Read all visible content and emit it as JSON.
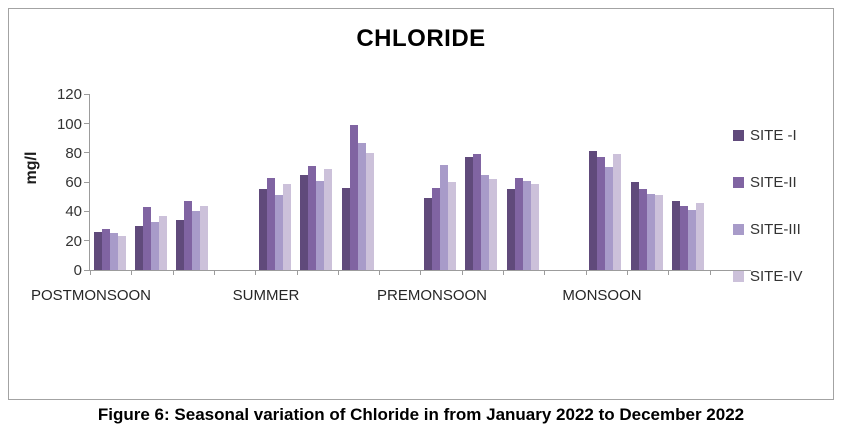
{
  "caption": "Figure 6: Seasonal variation of Chloride in from January 2022 to December 2022",
  "chart_data": {
    "type": "bar",
    "title": "CHLORIDE",
    "xlabel": "",
    "ylabel": "mg/l",
    "ylim": [
      0,
      120
    ],
    "yticks": [
      0,
      20,
      40,
      60,
      80,
      100,
      120
    ],
    "grid": false,
    "legend_position": "right",
    "categories": [
      "POSTMONSOON",
      "SUMMER",
      "PREMONSOON",
      "MONSOON"
    ],
    "clusters_per_category": 3,
    "series": [
      {
        "name": "SITE -I",
        "color": "#604a7b",
        "values": [
          [
            26,
            30,
            34
          ],
          [
            55,
            65,
            56
          ],
          [
            49,
            77,
            55
          ],
          [
            81,
            60,
            47
          ]
        ]
      },
      {
        "name": "SITE-II",
        "color": "#8064a2",
        "values": [
          [
            28,
            43,
            47
          ],
          [
            63,
            71,
            99
          ],
          [
            56,
            79,
            63
          ],
          [
            77,
            55,
            44
          ]
        ]
      },
      {
        "name": "SITE-III",
        "color": "#a89bc9",
        "values": [
          [
            25,
            33,
            40
          ],
          [
            51,
            61,
            87
          ],
          [
            72,
            65,
            61
          ],
          [
            70,
            52,
            41
          ]
        ]
      },
      {
        "name": "SITE-IV",
        "color": "#ccc1da",
        "values": [
          [
            23,
            37,
            44
          ],
          [
            59,
            69,
            80
          ],
          [
            60,
            62,
            59
          ],
          [
            79,
            51,
            46
          ]
        ]
      }
    ]
  }
}
